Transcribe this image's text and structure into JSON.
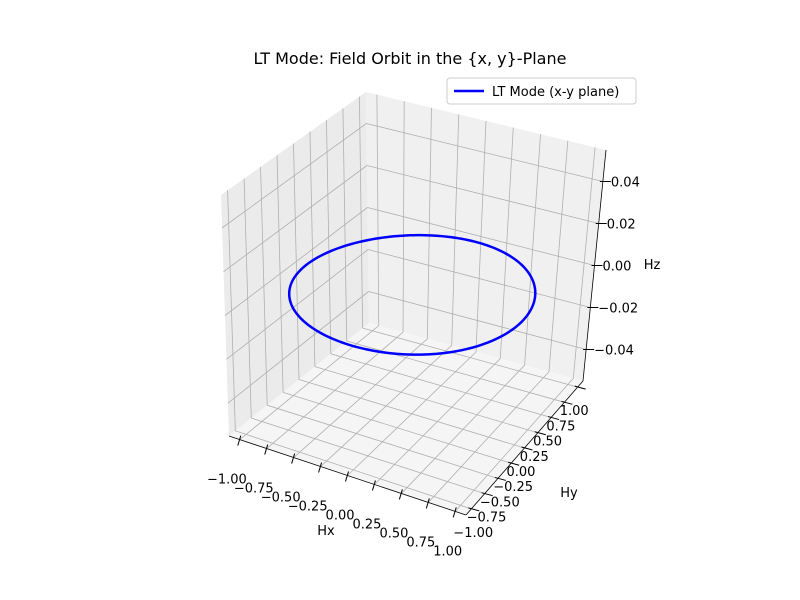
{
  "chart_data": {
    "type": "line",
    "projection": "3d",
    "title": "LT Mode: Field Orbit in the {x, y}-Plane",
    "xlabel": "Hx",
    "ylabel": "Hy",
    "zlabel": "Hz",
    "xlim": [
      -1.1,
      1.1
    ],
    "ylim": [
      -1.1,
      1.1
    ],
    "zlim": [
      -0.055,
      0.055
    ],
    "xticks": [
      "−1.00",
      "−0.75",
      "−0.50",
      "−0.25",
      "0.00",
      "0.25",
      "0.50",
      "0.75",
      "1.00"
    ],
    "yticks": [
      "−1.00",
      "−0.75",
      "−0.50",
      "−0.25",
      "0.00",
      "0.25",
      "0.50",
      "0.75",
      "1.00"
    ],
    "zticks": [
      "−0.04",
      "−0.02",
      "0.00",
      "0.02",
      "0.04"
    ],
    "grid": true,
    "legend": {
      "position": "top-right",
      "entries": [
        "LT Mode (x-y plane)"
      ]
    },
    "series": [
      {
        "name": "LT Mode (x-y plane)",
        "color": "#0000ff",
        "curve": "circle",
        "radius": 1.0,
        "z": 0.0,
        "samples": 200
      }
    ]
  },
  "colors": {
    "pane_left": "#ebebeb",
    "pane_right": "#f0f0f0",
    "pane_floor": "#f5f5f5",
    "grid": "#b0b0b0"
  }
}
